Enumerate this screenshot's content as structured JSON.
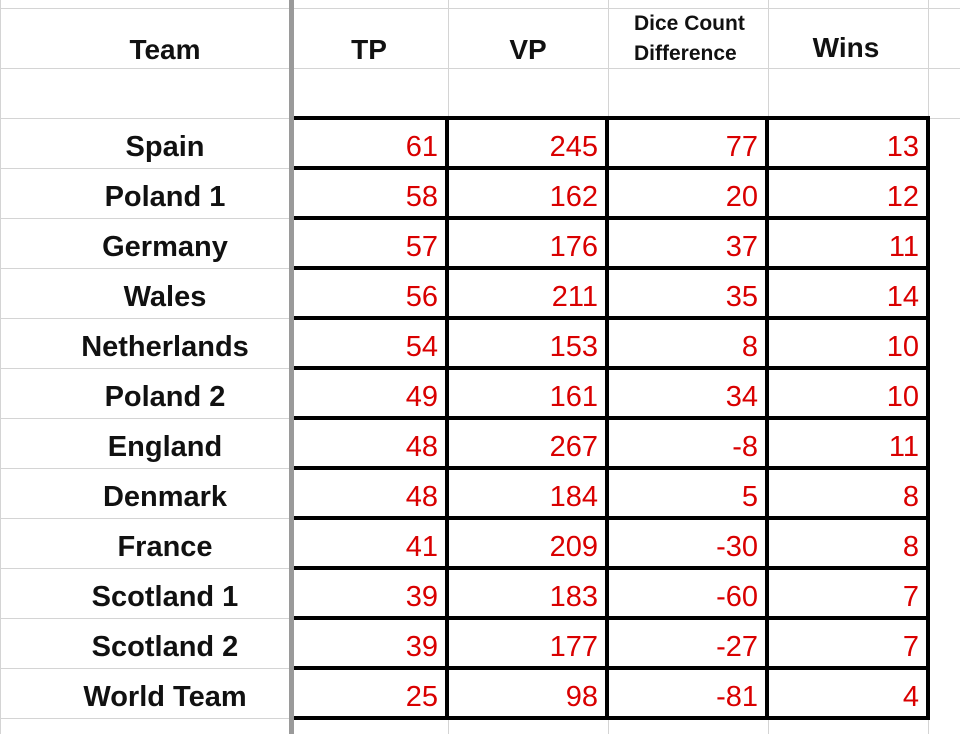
{
  "table": {
    "headers": {
      "team": "Team",
      "tp": "TP",
      "vp": "VP",
      "dice_line1": "Dice Count",
      "dice_line2": "Difference",
      "wins": "Wins"
    },
    "rows": [
      {
        "team": "Spain",
        "tp": "61",
        "vp": "245",
        "dice": "77",
        "wins": "13"
      },
      {
        "team": "Poland 1",
        "tp": "58",
        "vp": "162",
        "dice": "20",
        "wins": "12"
      },
      {
        "team": "Germany",
        "tp": "57",
        "vp": "176",
        "dice": "37",
        "wins": "11"
      },
      {
        "team": "Wales",
        "tp": "56",
        "vp": "211",
        "dice": "35",
        "wins": "14"
      },
      {
        "team": "Netherlands",
        "tp": "54",
        "vp": "153",
        "dice": "8",
        "wins": "10"
      },
      {
        "team": "Poland 2",
        "tp": "49",
        "vp": "161",
        "dice": "34",
        "wins": "10"
      },
      {
        "team": "England",
        "tp": "48",
        "vp": "267",
        "dice": "-8",
        "wins": "11"
      },
      {
        "team": "Denmark",
        "tp": "48",
        "vp": "184",
        "dice": "5",
        "wins": "8"
      },
      {
        "team": "France",
        "tp": "41",
        "vp": "209",
        "dice": "-30",
        "wins": "8"
      },
      {
        "team": "Scotland 1",
        "tp": "39",
        "vp": "183",
        "dice": "-60",
        "wins": "7"
      },
      {
        "team": "Scotland 2",
        "tp": "39",
        "vp": "177",
        "dice": "-27",
        "wins": "7"
      },
      {
        "team": "World Team",
        "tp": "25",
        "vp": "98",
        "dice": "-81",
        "wins": "4"
      }
    ]
  },
  "colors": {
    "value_text": "#d90000",
    "label_text": "#111111",
    "gridline": "#d4d4d4",
    "border": "#000000"
  }
}
